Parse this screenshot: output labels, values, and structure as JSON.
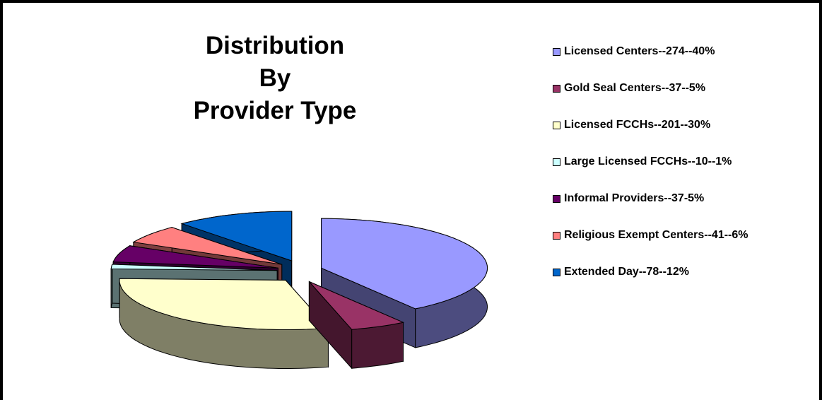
{
  "chart_data": {
    "type": "pie3d",
    "title": [
      "Distribution",
      "By",
      "Provider Type"
    ],
    "categories": [
      "Licensed Centers--274--40%",
      "Gold Seal Centers--37--5%",
      "Licensed FCCHs--201--30%",
      "Large Licensed FCCHs--10--1%",
      "Informal Providers--37-5%",
      "Religious Exempt Centers--41--6%",
      "Extended Day--78--12%"
    ],
    "values": [
      274,
      37,
      201,
      10,
      37,
      41,
      78
    ],
    "colors": [
      "#9999ff",
      "#993366",
      "#ffffcc",
      "#ccffff",
      "#660066",
      "#ff8080",
      "#0066cc"
    ],
    "legend": "right"
  }
}
